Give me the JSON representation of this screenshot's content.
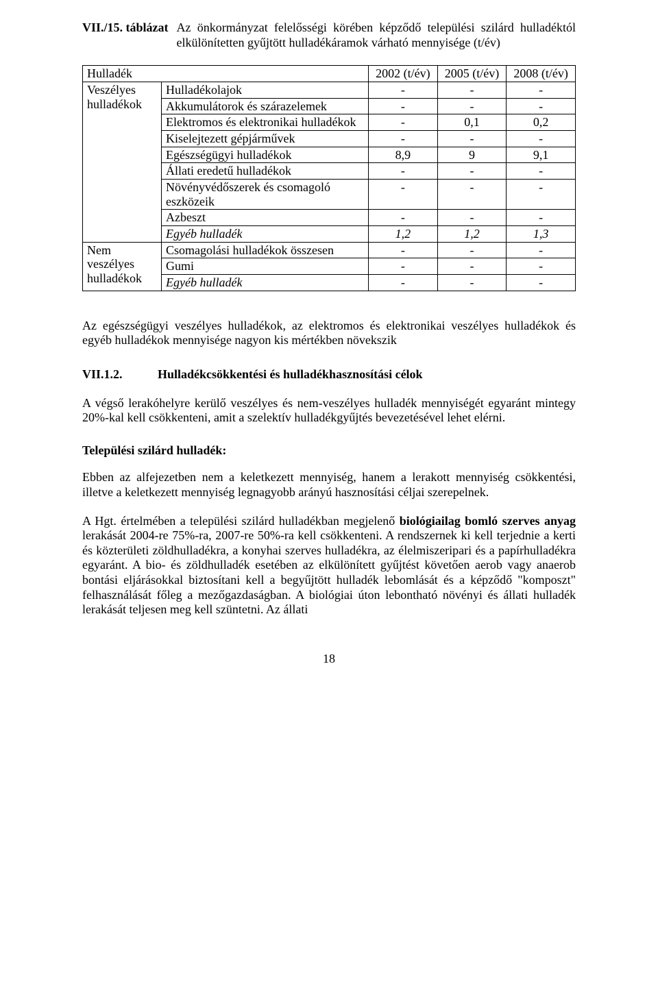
{
  "caption": {
    "label": "VII./15. táblázat",
    "text": "Az önkormányzat felelősségi körében képződő települési szilárd hulladéktól elkülönítetten gyűjtött hulladékáramok várható mennyisége (t/év)"
  },
  "table": {
    "row_header_col": "Hulladék",
    "years": [
      "2002 (t/év)",
      "2005 (t/év)",
      "2008 (t/év)"
    ],
    "groups": [
      {
        "label": "Veszélyes hulladékok",
        "rows": [
          {
            "name": "Hulladékolajok",
            "v": [
              "-",
              "-",
              "-"
            ]
          },
          {
            "name": "Akkumulátorok és szárazelemek",
            "v": [
              "-",
              "-",
              "-"
            ]
          },
          {
            "name": "Elektromos és elektronikai hulladékok",
            "v": [
              "-",
              "0,1",
              "0,2"
            ]
          },
          {
            "name": "Kiselejtezett gépjárművek",
            "v": [
              "-",
              "-",
              "-"
            ]
          },
          {
            "name": "Egészségügyi hulladékok",
            "v": [
              "8,9",
              "9",
              "9,1"
            ]
          },
          {
            "name": "Állati eredetű hulladékok",
            "v": [
              "-",
              "-",
              "-"
            ]
          },
          {
            "name": "Növényvédőszerek és csomagoló eszközeik",
            "v": [
              "-",
              "-",
              "-"
            ]
          },
          {
            "name": "Azbeszt",
            "v": [
              "-",
              "-",
              "-"
            ]
          },
          {
            "name": "Egyéb hulladék",
            "v": [
              "1,2",
              "1,2",
              "1,3"
            ],
            "italic": true
          }
        ]
      },
      {
        "label": "Nem veszélyes hulladékok",
        "rows": [
          {
            "name": "Csomagolási hulladékok összesen",
            "v": [
              "-",
              "-",
              "-"
            ]
          },
          {
            "name": "Gumi",
            "v": [
              "-",
              "-",
              "-"
            ]
          },
          {
            "name": "Egyéb hulladék",
            "v": [
              "-",
              "-",
              "-"
            ],
            "italic": true
          }
        ]
      }
    ]
  },
  "para1": "Az egészségügyi veszélyes hulladékok, az elektromos és elektronikai veszélyes hulladékok és egyéb hulladékok mennyisége nagyon kis mértékben növekszik",
  "section": {
    "number": "VII.1.2.",
    "title": "Hulladékcsökkentési és hulladékhasznosítási célok"
  },
  "para2": "A végső lerakóhelyre kerülő veszélyes és nem-veszélyes hulladék mennyiségét egyaránt mintegy 20%-kal kell csökkenteni, amit a szelektív hulladékgyűjtés bevezetésével lehet elérni.",
  "subheading": "Települési szilárd hulladék:",
  "para3": "Ebben az alfejezetben nem a keletkezett mennyiség, hanem a lerakott mennyiség csökkentési, illetve a keletkezett mennyiség legnagyobb arányú hasznosítási céljai szerepelnek.",
  "para4_prefix": "A Hgt. értelmében a települési szilárd hulladékban megjelenő ",
  "para4_bold": "biológiailag bomló szerves anyag",
  "para4_suffix": " lerakását 2004-re 75%-ra, 2007-re 50%-ra kell csökkenteni. A rendszernek ki kell terjednie a kerti és közterületi zöldhulladékra, a konyhai szerves hulladékra, az élelmiszeripari és a papírhulladékra egyaránt. A bio- és zöldhulladék esetében az elkülönített gyűjtést követően aerob vagy anaerob bontási eljárásokkal biztosítani kell a begyűjtött hulladék lebomlását és a képződő \"komposzt\" felhasználását főleg a mezőgazdaságban. A biológiai úton lebontható növényi és állati hulladék lerakását teljesen meg kell szüntetni. Az állati",
  "page_number": "18"
}
